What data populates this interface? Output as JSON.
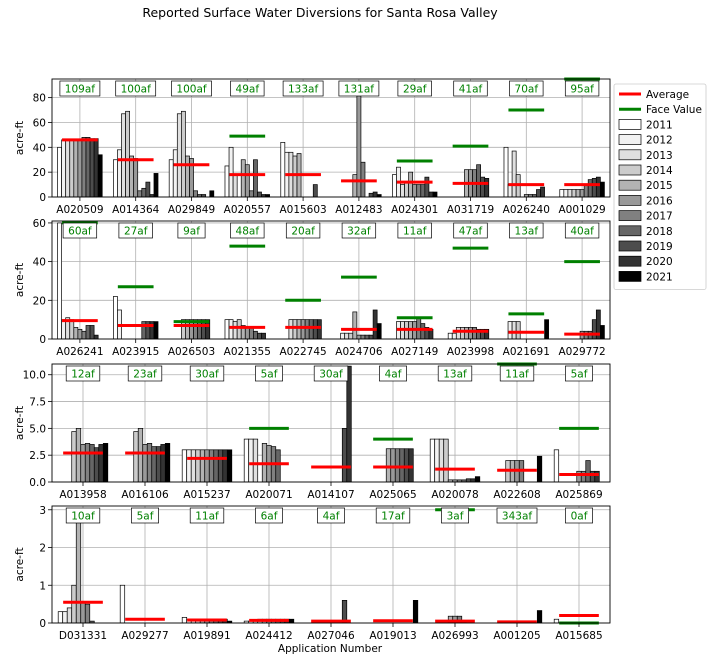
{
  "title": "Reported Surface Water Diversions for Santa Rosa Valley",
  "xlabel": "Application Number",
  "ylabel": "acre-ft",
  "legend": {
    "placement": "right, outside axes, top",
    "average_label": "Average",
    "face_value_label": "Face Value",
    "years": [
      "2011",
      "2012",
      "2013",
      "2014",
      "2015",
      "2016",
      "2017",
      "2018",
      "2019",
      "2020",
      "2021"
    ],
    "year_colors": [
      "#ffffff",
      "#f2f2f2",
      "#e0e0e0",
      "#cccccc",
      "#b3b3b3",
      "#999999",
      "#808080",
      "#666666",
      "#4d4d4d",
      "#333333",
      "#000000"
    ]
  },
  "colors": {
    "average": "#ff0000",
    "face_value": "#008000",
    "grid": "#b0b0b0",
    "face_label_text": "#008000"
  },
  "chart_data": [
    {
      "type": "bar",
      "ylabel": "acre-ft",
      "ylim": [
        0,
        95
      ],
      "yticks": [
        0,
        20,
        40,
        60,
        80
      ],
      "grid": true,
      "categories": [
        "A020509",
        "A014364",
        "A029849",
        "A020557",
        "A015603",
        "A012483",
        "A024301",
        "A031719",
        "A026240",
        "A001029"
      ],
      "face_value_labels": [
        "109af",
        "100af",
        "100af",
        "49af",
        "133af",
        "131af",
        "29af",
        "41af",
        "70af",
        "95af"
      ],
      "face_values": [
        109,
        100,
        100,
        49,
        133,
        131,
        29,
        41,
        70,
        95
      ],
      "averages": [
        46,
        30,
        26,
        18,
        18,
        13,
        12,
        11,
        10,
        10
      ],
      "values_by_year": [
        [
          40,
          30,
          30,
          25,
          44,
          0,
          18,
          0,
          40,
          6
        ],
        [
          46,
          38,
          38,
          40,
          36,
          0,
          24,
          0,
          10,
          6
        ],
        [
          46,
          67,
          67,
          18,
          36,
          0,
          10,
          0,
          37,
          6
        ],
        [
          46,
          69,
          69,
          0,
          33,
          0,
          12,
          0,
          18,
          6
        ],
        [
          46,
          33,
          33,
          30,
          35,
          18,
          20,
          22,
          0,
          6
        ],
        [
          46,
          31,
          31,
          26,
          0,
          92,
          10,
          22,
          2,
          6
        ],
        [
          48,
          5,
          5,
          5,
          0,
          28,
          10,
          22,
          2,
          10
        ],
        [
          48,
          7,
          2,
          30,
          0,
          0,
          10,
          26,
          2,
          14
        ],
        [
          47,
          12,
          2,
          4,
          10,
          3,
          16,
          16,
          6,
          15
        ],
        [
          47,
          2,
          0,
          2,
          0,
          4,
          4,
          15,
          8,
          16
        ],
        [
          34,
          19,
          5,
          2,
          0,
          2,
          4,
          0,
          0,
          12
        ]
      ]
    },
    {
      "type": "bar",
      "ylabel": "acre-ft",
      "ylim": [
        0,
        61
      ],
      "yticks": [
        0,
        20,
        40,
        60
      ],
      "grid": true,
      "categories": [
        "A026241",
        "A023915",
        "A026503",
        "A021355",
        "A022745",
        "A024706",
        "A027149",
        "A023998",
        "A021691",
        "A029772"
      ],
      "face_value_labels": [
        "60af",
        "27af",
        "9af",
        "48af",
        "20af",
        "32af",
        "11af",
        "47af",
        "13af",
        "40af"
      ],
      "face_values": [
        60,
        27,
        9,
        48,
        20,
        32,
        11,
        47,
        13,
        40
      ],
      "averages": [
        9.5,
        7,
        7,
        6,
        6,
        5,
        5,
        4,
        3.5,
        2.5
      ],
      "values_by_year": [
        [
          60,
          22,
          0,
          10,
          0,
          0,
          0,
          3,
          0,
          0
        ],
        [
          10,
          15,
          0,
          10,
          0,
          3,
          9,
          3,
          9,
          0
        ],
        [
          11,
          0,
          0,
          9,
          10,
          3,
          9,
          6,
          9,
          0
        ],
        [
          10,
          0,
          10,
          10,
          10,
          3,
          9,
          6,
          9,
          0
        ],
        [
          6,
          0,
          10,
          7,
          10,
          14,
          9,
          6,
          0,
          0
        ],
        [
          5,
          0,
          10,
          6,
          10,
          2,
          9,
          6,
          0,
          4
        ],
        [
          4,
          0,
          10,
          6,
          10,
          2,
          11,
          6,
          0,
          4
        ],
        [
          7,
          9,
          10,
          4,
          10,
          2,
          8,
          5,
          0,
          4
        ],
        [
          7,
          9,
          10,
          3,
          10,
          2,
          6,
          5,
          0,
          10
        ],
        [
          2,
          9,
          10,
          3,
          10,
          15,
          5,
          5,
          0,
          15
        ],
        [
          0,
          9,
          0,
          0,
          0,
          8,
          0,
          0,
          10,
          7
        ]
      ]
    },
    {
      "type": "bar",
      "ylabel": "acre-ft",
      "ylim": [
        0,
        11
      ],
      "yticks": [
        0.0,
        2.5,
        5.0,
        7.5,
        10.0
      ],
      "grid": true,
      "categories": [
        "A013958",
        "A016106",
        "A015237",
        "A020071",
        "A014107",
        "A025065",
        "A020078",
        "A022608",
        "A025869"
      ],
      "face_value_labels": [
        "12af",
        "23af",
        "30af",
        "5af",
        "30af",
        "4af",
        "13af",
        "11af",
        "5af"
      ],
      "face_values": [
        12,
        23,
        30,
        5,
        30,
        4,
        13,
        11,
        5
      ],
      "averages": [
        2.7,
        2.7,
        2.2,
        1.7,
        1.4,
        1.4,
        1.2,
        1.1,
        0.7
      ],
      "values_by_year": [
        [
          0,
          0,
          3,
          4,
          0,
          0,
          4,
          0,
          3
        ],
        [
          0,
          0,
          3,
          4,
          0,
          0,
          4,
          0,
          0
        ],
        [
          0,
          0,
          3,
          4,
          0,
          0,
          4,
          0,
          0
        ],
        [
          4.7,
          4.7,
          3,
          0,
          0,
          0,
          4,
          2,
          0
        ],
        [
          5.0,
          5.0,
          3,
          3.6,
          0,
          3.1,
          0.2,
          2,
          0
        ],
        [
          3.5,
          3.5,
          3,
          3.4,
          0,
          3.1,
          0.2,
          2,
          1
        ],
        [
          3.6,
          3.6,
          3,
          3.3,
          0,
          3.1,
          0.2,
          2,
          1
        ],
        [
          3.5,
          3.3,
          3,
          3.0,
          0,
          3.1,
          0.2,
          0,
          2
        ],
        [
          3.2,
          3.3,
          3,
          0,
          5,
          3.1,
          0.3,
          0,
          1
        ],
        [
          3.5,
          3.5,
          3,
          0,
          10.8,
          3.1,
          0.3,
          0,
          1
        ],
        [
          3.6,
          3.6,
          3,
          0,
          0,
          0,
          0.5,
          2.4,
          0
        ]
      ]
    },
    {
      "type": "bar",
      "ylabel": "acre-ft",
      "ylim": [
        0,
        3.1
      ],
      "yticks": [
        0,
        1,
        2,
        3
      ],
      "grid": true,
      "categories": [
        "D031331",
        "A029277",
        "A019891",
        "A024412",
        "A027046",
        "A019013",
        "A026993",
        "A001205",
        "A015685"
      ],
      "face_value_labels": [
        "10af",
        "5af",
        "11af",
        "6af",
        "4af",
        "17af",
        "3af",
        "343af",
        "0af"
      ],
      "face_values": [
        10,
        5,
        11,
        6,
        4,
        17,
        3,
        343,
        0
      ],
      "averages": [
        0.55,
        0.1,
        0.08,
        0.07,
        0.05,
        0.06,
        0.05,
        0.03,
        0.2
      ],
      "values_by_year": [
        [
          0.3,
          1.0,
          0.15,
          0.05,
          0,
          0,
          0,
          0,
          0.1
        ],
        [
          0.3,
          0,
          0.1,
          0.05,
          0,
          0,
          0,
          0,
          0
        ],
        [
          0.4,
          0,
          0.1,
          0.05,
          0,
          0,
          0,
          0,
          0
        ],
        [
          1.0,
          0,
          0.1,
          0.1,
          0,
          0,
          0,
          0,
          0
        ],
        [
          3.0,
          0,
          0.1,
          0.1,
          0,
          0,
          0.18,
          0,
          0
        ],
        [
          0.55,
          0,
          0.1,
          0.1,
          0,
          0,
          0.18,
          0,
          0
        ],
        [
          0.5,
          0,
          0.1,
          0.1,
          0,
          0,
          0.18,
          0,
          0
        ],
        [
          0.05,
          0,
          0.1,
          0.1,
          0,
          0,
          0.05,
          0,
          0
        ],
        [
          0,
          0,
          0.1,
          0.1,
          0.6,
          0,
          0,
          0,
          0
        ],
        [
          0,
          0,
          0.1,
          0.1,
          0,
          0,
          0,
          0,
          0
        ],
        [
          0,
          0,
          0.05,
          0.1,
          0,
          0.6,
          0,
          0.33,
          0
        ]
      ]
    }
  ]
}
